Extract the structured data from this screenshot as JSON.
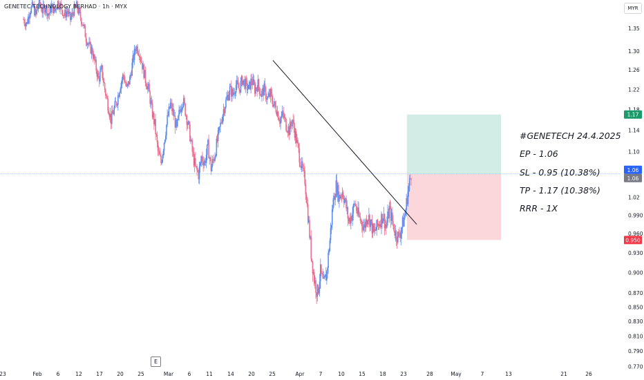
{
  "header": {
    "title": "GENETEC TECHNOLOGY BERHAD · 1h · MYX",
    "currency": "MYR"
  },
  "annotation": {
    "line1": "#GENETECH 24.4.2025",
    "line2": "EP - 1.06",
    "line3": "SL - 0.95 (10.38%)",
    "line4": "TP - 1.17 (10.38%)",
    "line5": "RRR - 1X"
  },
  "earnings_marker": "E",
  "colors": {
    "up": "#5b8def",
    "down": "#ef6f8e",
    "target_zone": "#d2ede6",
    "stop_zone": "#fbd7dc",
    "target_label": "#1d9a6c",
    "stop_label": "#f23645",
    "last_price_label": "#2962ff",
    "entry_label": "#787b86",
    "trendline": "#131722"
  },
  "chart_data": {
    "type": "candlestick",
    "y_axis": {
      "ticks": [
        "1.35",
        "1.30",
        "1.26",
        "1.22",
        "1.18",
        "1.14",
        "1.10",
        "1.06",
        "1.02",
        "0.990",
        "0.960",
        "0.930",
        "0.900",
        "0.870",
        "0.850",
        "0.830",
        "0.810",
        "0.790",
        "0.770"
      ],
      "scale": "log"
    },
    "x_axis": {
      "ticks": [
        "23",
        "Feb",
        "6",
        "12",
        "17",
        "20",
        "25",
        "Mar",
        "6",
        "11",
        "14",
        "20",
        "25",
        "Apr",
        "7",
        "10",
        "15",
        "18",
        "23",
        "28",
        "May",
        "7",
        "13",
        "21",
        "26"
      ]
    },
    "price_labels": {
      "target": "1.17",
      "last": "1.06",
      "entry": "1.06",
      "stop": "0.950"
    },
    "position": {
      "entry": 1.06,
      "target": 1.17,
      "stop": 0.95
    },
    "trendline": {
      "from_price": 1.28,
      "to_price": 0.975
    },
    "entry_line": 1.06,
    "price_path": [
      1.37,
      1.36,
      1.39,
      1.4,
      1.38,
      1.41,
      1.39,
      1.4,
      1.38,
      1.4,
      1.39,
      1.41,
      1.4,
      1.38,
      1.39,
      1.37,
      1.39,
      1.4,
      1.38,
      1.36,
      1.33,
      1.31,
      1.3,
      1.27,
      1.24,
      1.26,
      1.22,
      1.19,
      1.16,
      1.18,
      1.2,
      1.23,
      1.25,
      1.22,
      1.24,
      1.28,
      1.31,
      1.3,
      1.27,
      1.24,
      1.22,
      1.18,
      1.15,
      1.1,
      1.08,
      1.12,
      1.16,
      1.19,
      1.17,
      1.14,
      1.18,
      1.2,
      1.17,
      1.14,
      1.1,
      1.07,
      1.06,
      1.09,
      1.08,
      1.11,
      1.07,
      1.09,
      1.12,
      1.15,
      1.18,
      1.2,
      1.22,
      1.21,
      1.23,
      1.22,
      1.24,
      1.23,
      1.22,
      1.24,
      1.22,
      1.23,
      1.21,
      1.22,
      1.2,
      1.21,
      1.19,
      1.18,
      1.16,
      1.17,
      1.15,
      1.14,
      1.16,
      1.13,
      1.1,
      1.07,
      1.05,
      0.99,
      0.93,
      0.89,
      0.87,
      0.9,
      0.88,
      0.9,
      0.95,
      1.01,
      1.04,
      1.02,
      1.03,
      1.01,
      0.98,
      0.99,
      1.01,
      0.99,
      0.98,
      0.97,
      0.99,
      0.98,
      0.96,
      0.97,
      0.98,
      0.99,
      0.97,
      1.0,
      0.98,
      0.96,
      0.955,
      0.97,
      0.99,
      1.03,
      1.06
    ]
  }
}
